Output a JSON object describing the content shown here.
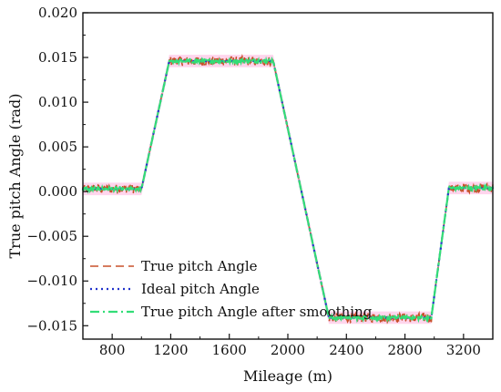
{
  "chart_data": {
    "type": "line",
    "title": "",
    "xlabel": "Mileage (m)",
    "ylabel": "True pitch Angle (rad)",
    "xlim": [
      600,
      3400
    ],
    "ylim": [
      -0.0165,
      0.02
    ],
    "x_ticks": [
      800,
      1200,
      1600,
      2000,
      2400,
      2800,
      3200
    ],
    "x_tick_labels": [
      "800",
      "1200",
      "1600",
      "2000",
      "2400",
      "2800",
      "3200"
    ],
    "y_ticks": [
      0.02,
      0.015,
      0.01,
      0.005,
      0.0,
      -0.005,
      -0.01,
      -0.015
    ],
    "y_tick_labels": [
      "0.020",
      "0.015",
      "0.010",
      "0.005",
      "0.000",
      "−0.005",
      "−0.010",
      "−0.015"
    ],
    "grid": false,
    "legend_position": "bottom-left",
    "series": [
      {
        "name": "True pitch Angle",
        "style": "dash",
        "color": "#c8502a",
        "noise": 0.0005,
        "x": [
          600,
          980,
          1000,
          1190,
          1900,
          2280,
          2980,
          3100,
          3400
        ],
        "values": [
          0.0003,
          0.0003,
          0.0003,
          0.0146,
          0.0146,
          -0.0141,
          -0.0141,
          0.0004,
          0.0004
        ]
      },
      {
        "name": "Ideal pitch Angle",
        "style": "dot",
        "color": "#2233cc",
        "noise": 0,
        "x": [
          600,
          980,
          1000,
          1190,
          1900,
          2280,
          2980,
          3100,
          3400
        ],
        "values": [
          0.0003,
          0.0003,
          0.0003,
          0.0146,
          0.0146,
          -0.0141,
          -0.0141,
          0.0004,
          0.0004
        ]
      },
      {
        "name": "True pitch Angle after smoothing",
        "style": "dashdot",
        "color": "#33dd77",
        "noise": 0.0002,
        "x": [
          600,
          980,
          1000,
          1190,
          1900,
          2280,
          2980,
          3100,
          3400
        ],
        "values": [
          0.0003,
          0.0003,
          0.0003,
          0.0146,
          0.0146,
          -0.0141,
          -0.0141,
          0.0004,
          0.0004
        ]
      }
    ]
  },
  "colors": {
    "true_band": "#ff88cc",
    "axis": "#111111"
  }
}
